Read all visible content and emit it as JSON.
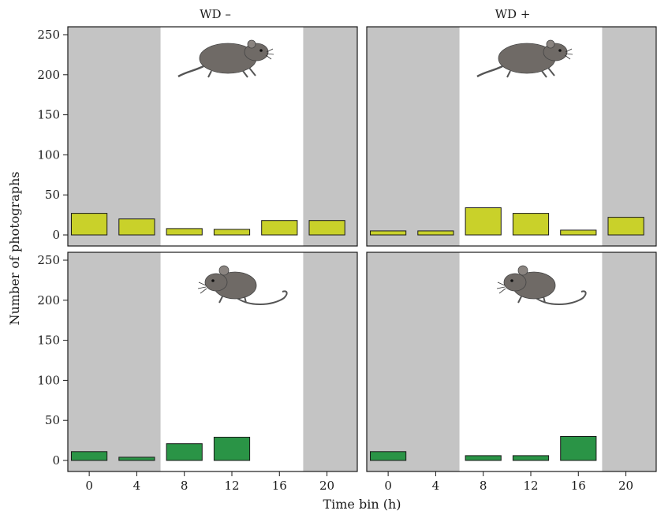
{
  "chart_data": {
    "type": "bar",
    "xlabel": "Time bin (h)",
    "ylabel": "Number of photographs",
    "ylim": [
      0,
      250
    ],
    "yticks": [
      0,
      50,
      100,
      150,
      200,
      250
    ],
    "categories": [
      "0",
      "4",
      "8",
      "12",
      "16",
      "20"
    ],
    "day_band_hours": [
      6,
      18
    ],
    "grid": false,
    "panel_titles": [
      "WD –",
      "WD +"
    ],
    "colors": {
      "top_bars": "#c9d12a",
      "bottom_bars": "#2a9446",
      "night_band": "#c4c4c4",
      "icon": "#6f6a66"
    },
    "panels": [
      {
        "row": 0,
        "col": 0,
        "icon": "rodent-facing-right-icon",
        "values": [
          27,
          20,
          8,
          7,
          18,
          18
        ]
      },
      {
        "row": 0,
        "col": 1,
        "icon": "rodent-facing-right-icon",
        "values": [
          5,
          5,
          34,
          27,
          6,
          22
        ]
      },
      {
        "row": 1,
        "col": 0,
        "icon": "mouse-facing-left-icon",
        "values": [
          11,
          4,
          21,
          29,
          0,
          0
        ]
      },
      {
        "row": 1,
        "col": 1,
        "icon": "mouse-facing-left-icon",
        "values": [
          11,
          0,
          6,
          6,
          30,
          0
        ]
      }
    ]
  }
}
